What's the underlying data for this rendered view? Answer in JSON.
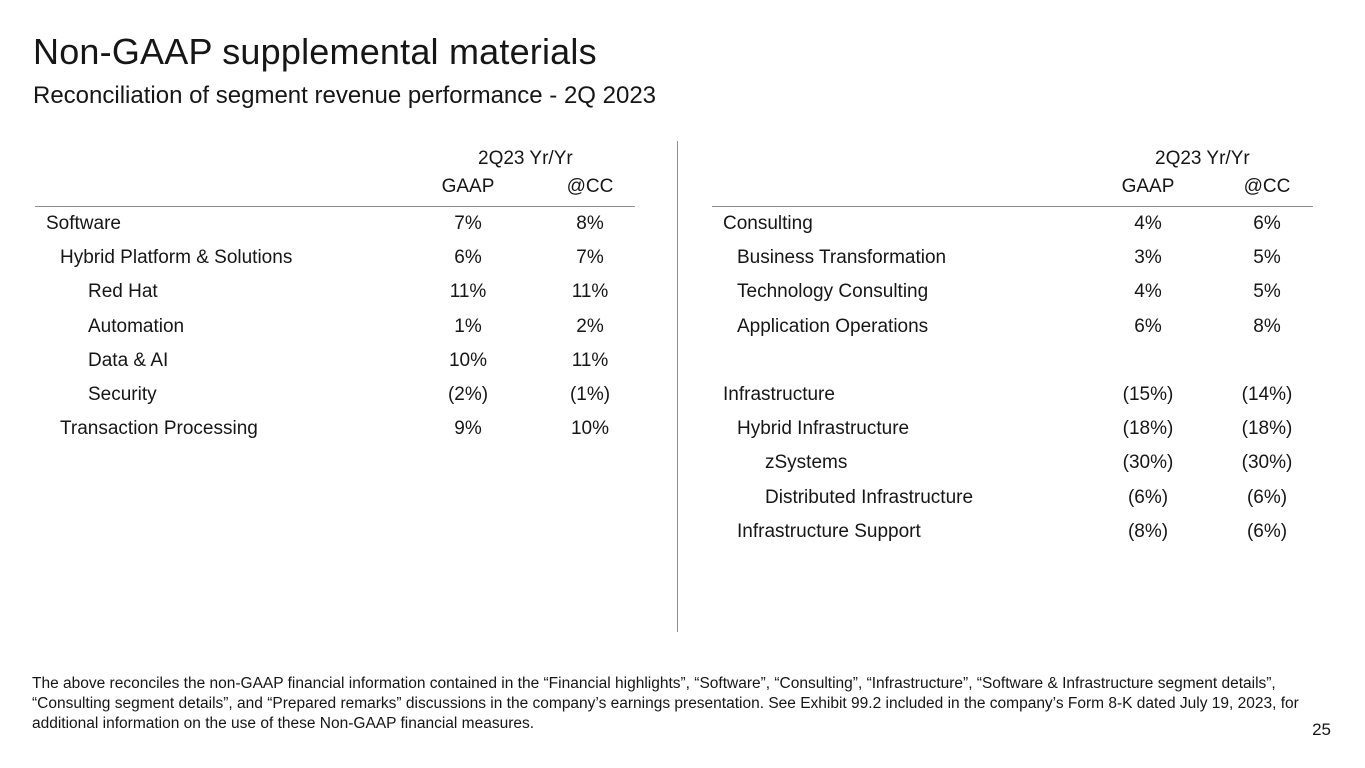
{
  "title": "Non-GAAP supplemental materials",
  "subtitle": "Reconciliation of segment revenue performance - 2Q 2023",
  "left_table": {
    "period_header": "2Q23 Yr/Yr",
    "col_gaap": "GAAP",
    "col_cc": "@CC",
    "rows": [
      {
        "label": "Software",
        "indent": 0,
        "gaap": "7%",
        "cc": "8%"
      },
      {
        "label": "Hybrid Platform & Solutions",
        "indent": 1,
        "gaap": "6%",
        "cc": "7%"
      },
      {
        "label": "Red Hat",
        "indent": 2,
        "gaap": "11%",
        "cc": "11%"
      },
      {
        "label": "Automation",
        "indent": 2,
        "gaap": "1%",
        "cc": "2%"
      },
      {
        "label": "Data & AI",
        "indent": 2,
        "gaap": "10%",
        "cc": "11%"
      },
      {
        "label": "Security",
        "indent": 2,
        "gaap": "(2%)",
        "cc": "(1%)"
      },
      {
        "label": "Transaction Processing",
        "indent": 1,
        "gaap": "9%",
        "cc": "10%"
      }
    ]
  },
  "right_table": {
    "period_header": "2Q23 Yr/Yr",
    "col_gaap": "GAAP",
    "col_cc": "@CC",
    "rows": [
      {
        "label": "Consulting",
        "indent": 0,
        "gaap": "4%",
        "cc": "6%"
      },
      {
        "label": "Business Transformation",
        "indent": 1,
        "gaap": "3%",
        "cc": "5%"
      },
      {
        "label": "Technology Consulting",
        "indent": 1,
        "gaap": "4%",
        "cc": "5%"
      },
      {
        "label": "Application Operations",
        "indent": 1,
        "gaap": "6%",
        "cc": "8%"
      },
      {
        "label": "",
        "indent": 0,
        "gaap": "",
        "cc": ""
      },
      {
        "label": "Infrastructure",
        "indent": 0,
        "gaap": "(15%)",
        "cc": "(14%)"
      },
      {
        "label": "Hybrid Infrastructure",
        "indent": 1,
        "gaap": "(18%)",
        "cc": "(18%)"
      },
      {
        "label": "zSystems",
        "indent": 2,
        "gaap": "(30%)",
        "cc": "(30%)"
      },
      {
        "label": "Distributed Infrastructure",
        "indent": 2,
        "gaap": "(6%)",
        "cc": "(6%)"
      },
      {
        "label": "Infrastructure Support",
        "indent": 1,
        "gaap": "(8%)",
        "cc": "(6%)"
      }
    ]
  },
  "footnote": "The above reconciles the non-GAAP financial information contained in the “Financial highlights”, “Software”, “Consulting”, “Infrastructure”, “Software & Infrastructure segment details”, “Consulting segment details”, and “Prepared remarks” discussions in the company’s earnings presentation. See Exhibit 99.2 included in the company’s Form 8-K dated July 19, 2023, for additional information on the use of these Non-GAAP financial measures.",
  "page_number": "25"
}
